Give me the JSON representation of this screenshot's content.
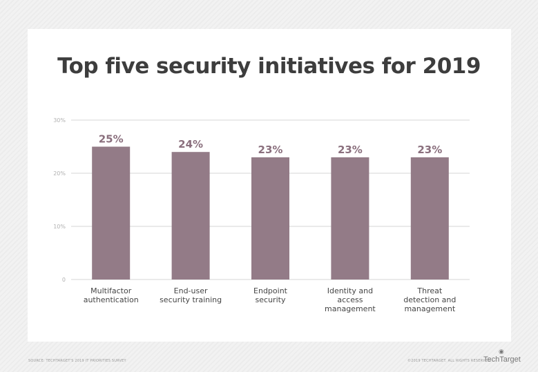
{
  "chart_data": {
    "type": "bar",
    "title": "Top five security initiatives for 2019",
    "categories": [
      [
        "Multifactor",
        "authentication"
      ],
      [
        "End-user",
        "security training"
      ],
      [
        "Endpoint",
        "security"
      ],
      [
        "Identity and",
        "access",
        "management"
      ],
      [
        "Threat",
        "detection and",
        "management"
      ]
    ],
    "values": [
      25,
      24,
      23,
      23,
      23
    ],
    "data_labels": [
      "25%",
      "24%",
      "23%",
      "23%",
      "23%"
    ],
    "yticks": [
      0,
      10,
      20,
      30
    ],
    "ytick_labels": [
      "0",
      "10%",
      "20%",
      "30%"
    ],
    "ylim": [
      0,
      30
    ],
    "grid": true,
    "xlabel": "",
    "ylabel": "",
    "bar_color": "#937b87",
    "label_color": "#8a6f7d"
  },
  "footer": {
    "source": "SOURCE: TECHTARGET'S 2019 IT PRIORITIES SURVEY",
    "copyright": "©2019 TECHTARGET. ALL RIGHTS RESERVED",
    "logo": "TechTarget"
  }
}
